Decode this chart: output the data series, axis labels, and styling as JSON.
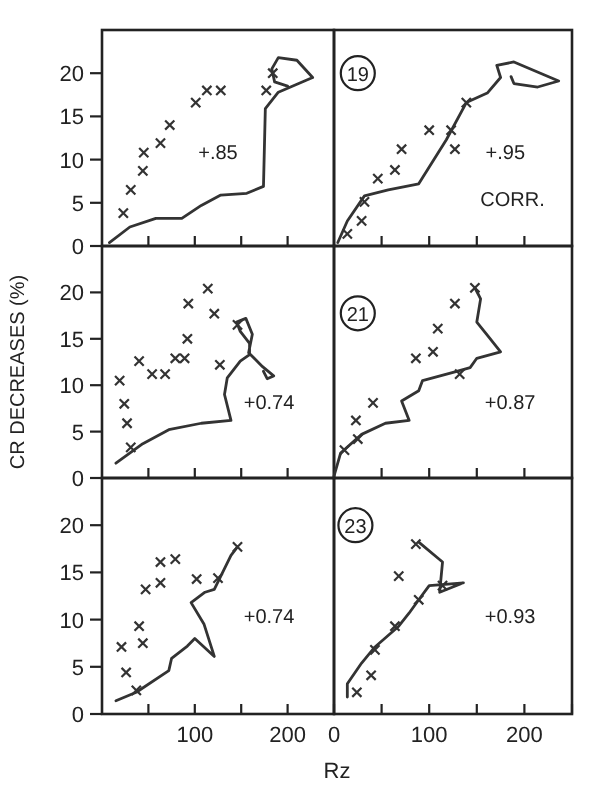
{
  "chart_data": [
    {
      "type": "line",
      "xlim": [
        0,
        250
      ],
      "ylim": [
        0,
        25
      ],
      "xticks": [
        {
          "value": 50,
          "label": null
        },
        {
          "value": 100,
          "label": null
        },
        {
          "value": 150,
          "label": null
        },
        {
          "value": 200,
          "label": null
        }
      ],
      "yticks": [
        0,
        5,
        10,
        15,
        20
      ],
      "tick_labels": "y",
      "annotations": [
        "+.85"
      ],
      "series": [
        {
          "color": "#333333",
          "x": [
            8,
            30,
            58,
            86,
            107,
            128,
            156,
            174,
            176,
            190,
            227,
            210,
            190,
            183,
            186,
            200
          ],
          "values": [
            0.4,
            2.2,
            3.2,
            3.2,
            4.7,
            5.9,
            6.1,
            6.9,
            15.9,
            17.8,
            19.5,
            21.5,
            21.8,
            20.5,
            19,
            18.5
          ]
        },
        {
          "type": "scatter",
          "marker": "cross",
          "color": "#333333",
          "x": [
            23,
            31,
            44,
            45,
            63,
            73,
            101,
            113,
            128,
            177,
            184
          ],
          "values": [
            3.8,
            6.5,
            8.7,
            10.8,
            11.9,
            14,
            16.6,
            18,
            18,
            18,
            20
          ]
        }
      ]
    },
    {
      "type": "line",
      "xlim": [
        0,
        250
      ],
      "ylim": [
        0,
        25
      ],
      "xticks": [
        {
          "value": 50,
          "label": null
        },
        {
          "value": 100,
          "label": null
        },
        {
          "value": 150,
          "label": null
        },
        {
          "value": 200,
          "label": null
        }
      ],
      "tick_labels": false,
      "annotations": [
        "19",
        "+.95",
        "CORR."
      ],
      "series": [
        {
          "color": "#333333",
          "x": [
            4,
            14,
            32,
            57,
            89,
            118,
            139,
            161,
            175,
            171,
            189,
            236,
            214,
            189,
            186
          ],
          "values": [
            0.4,
            2.9,
            5.8,
            6.5,
            7.2,
            12.3,
            16.6,
            17.7,
            19.5,
            20.9,
            21.3,
            19.1,
            18.4,
            18.8,
            19.6
          ]
        },
        {
          "type": "scatter",
          "marker": "cross",
          "color": "#333333",
          "x": [
            14,
            29,
            32,
            46,
            64,
            71,
            100,
            123,
            127,
            139
          ],
          "values": [
            1.4,
            2.9,
            5.1,
            7.8,
            8.8,
            11.2,
            13.4,
            13.4,
            11.2,
            16.6
          ]
        }
      ]
    },
    {
      "type": "line",
      "xlim": [
        0,
        250
      ],
      "ylim": [
        0,
        25
      ],
      "xticks": [
        {
          "value": 50,
          "label": null
        },
        {
          "value": 100,
          "label": null
        },
        {
          "value": 150,
          "label": null
        },
        {
          "value": 200,
          "label": null
        }
      ],
      "yticks": [
        0,
        5,
        10,
        15,
        20
      ],
      "tick_labels": "y",
      "ylabel": "CR DECREASES (%)",
      "annotations": [
        "+0.74"
      ],
      "series": [
        {
          "color": "#333333",
          "x": [
            15,
            44,
            72,
            107,
            139,
            132,
            135,
            149,
            159,
            159,
            149,
            145,
            155,
            162,
            158,
            173,
            185,
            178,
            174
          ],
          "values": [
            1.6,
            3.7,
            5.2,
            5.9,
            6.2,
            9,
            10.8,
            12.6,
            13.3,
            14.5,
            15.8,
            16.8,
            17.2,
            15.5,
            13.5,
            12,
            11,
            10.7,
            11.5
          ]
        },
        {
          "type": "scatter",
          "marker": "cross",
          "color": "#333333",
          "x": [
            19,
            24,
            27,
            31,
            40,
            54,
            68,
            79,
            89,
            92,
            93,
            114,
            121,
            127,
            146
          ],
          "values": [
            10.5,
            8,
            5.9,
            3.3,
            12.6,
            11.2,
            11.2,
            12.9,
            12.9,
            15,
            18.8,
            20.4,
            17.7,
            12.2,
            16.5
          ]
        }
      ]
    },
    {
      "type": "line",
      "xlim": [
        0,
        250
      ],
      "ylim": [
        0,
        25
      ],
      "xticks": [
        {
          "value": 50,
          "label": null
        },
        {
          "value": 100,
          "label": null
        },
        {
          "value": 150,
          "label": null
        },
        {
          "value": 200,
          "label": null
        }
      ],
      "tick_labels": false,
      "annotations": [
        "21",
        "+0.87"
      ],
      "series": [
        {
          "color": "#333333",
          "x": [
            0,
            7,
            29,
            54,
            79,
            71,
            89,
            93,
            129,
            143,
            150,
            175,
            161,
            150,
            154,
            148
          ],
          "values": [
            0.2,
            2.7,
            4.7,
            5.9,
            6.2,
            8.3,
            9.4,
            10.5,
            11.5,
            11.9,
            12.9,
            13.6,
            15.4,
            16.8,
            19.3,
            20.5
          ]
        },
        {
          "type": "scatter",
          "marker": "cross",
          "color": "#333333",
          "x": [
            11,
            25,
            23,
            41,
            86,
            104,
            109,
            127,
            148,
            132
          ],
          "values": [
            3,
            4.2,
            6.2,
            8.1,
            12.9,
            13.6,
            16.1,
            18.8,
            20.5,
            11.2
          ]
        }
      ]
    },
    {
      "type": "line",
      "xlim": [
        0,
        250
      ],
      "ylim": [
        0,
        25
      ],
      "xticks": [
        {
          "value": 50,
          "label": null
        },
        100,
        {
          "value": 150,
          "label": null
        },
        200
      ],
      "yticks": [
        0,
        5,
        10,
        15,
        20
      ],
      "xlabel": "Rz",
      "annotations": [
        "+0.74"
      ],
      "series": [
        {
          "color": "#333333",
          "x": [
            15,
            37,
            72,
            75,
            92,
            100,
            121,
            110,
            96,
            111,
            121,
            139,
            146
          ],
          "values": [
            1.4,
            2.3,
            4.6,
            5.9,
            7.2,
            8,
            6.1,
            9.5,
            11.8,
            12.9,
            13.2,
            16.8,
            17.7
          ]
        },
        {
          "type": "scatter",
          "marker": "cross",
          "color": "#333333",
          "x": [
            37,
            26,
            21,
            40,
            44,
            47,
            63,
            63,
            79,
            102,
            125,
            146
          ],
          "values": [
            2.5,
            4.4,
            7.1,
            9.3,
            7.5,
            13.2,
            13.9,
            16.1,
            16.4,
            14.3,
            14.4,
            17.7
          ]
        }
      ]
    },
    {
      "type": "line",
      "xlim": [
        0,
        250
      ],
      "ylim": [
        0,
        25
      ],
      "xticks": [
        0,
        {
          "value": 50,
          "label": null
        },
        100,
        {
          "value": 150,
          "label": null
        },
        200,
        {
          "value": 250,
          "label": null
        }
      ],
      "tick_labels": "x",
      "annotations": [
        "23",
        "+0.93"
      ],
      "series": [
        {
          "color": "#333333",
          "x": [
            14,
            14,
            29,
            43,
            68,
            79,
            89,
            100,
            136,
            111,
            114,
            89
          ],
          "values": [
            1.8,
            3.2,
            5.4,
            7.1,
            9.3,
            10.7,
            12.1,
            13.6,
            13.9,
            12.9,
            16.1,
            18.2
          ]
        },
        {
          "type": "scatter",
          "marker": "cross",
          "color": "#333333",
          "x": [
            24,
            39,
            43,
            64,
            89,
            68,
            86,
            114
          ],
          "values": [
            2.3,
            4.1,
            6.8,
            9.3,
            12.1,
            14.6,
            18,
            13.6
          ]
        }
      ]
    }
  ]
}
